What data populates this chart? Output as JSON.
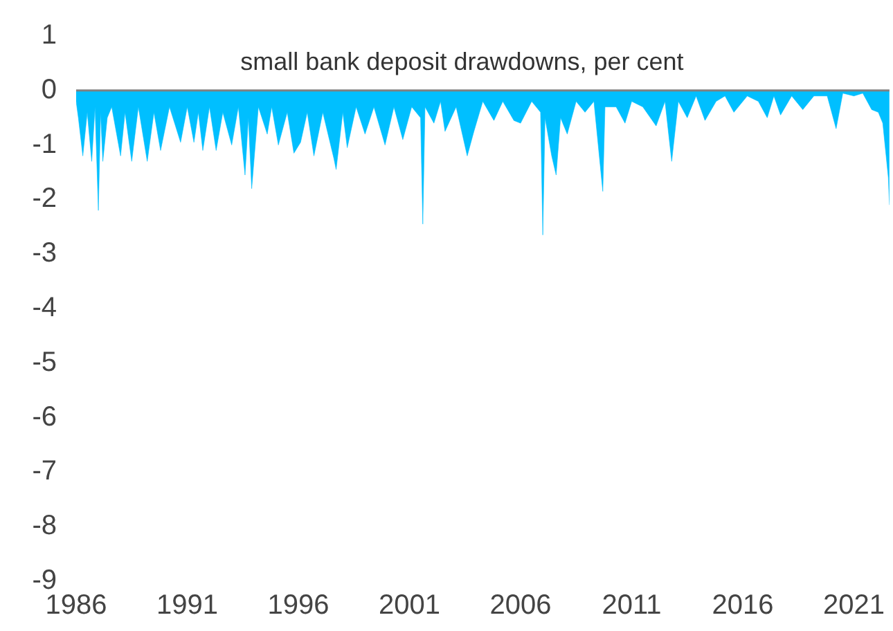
{
  "chart_data": {
    "type": "area",
    "title": "small bank deposit drawdowns, per cent",
    "x": [
      1986,
      1986.1,
      1986.3,
      1986.5,
      1986.7,
      1986.85,
      1987.0,
      1987.1,
      1987.2,
      1987.4,
      1987.6,
      1988.0,
      1988.2,
      1988.5,
      1988.8,
      1989.2,
      1989.5,
      1989.8,
      1990.2,
      1990.7,
      1991.0,
      1991.3,
      1991.5,
      1991.7,
      1992.0,
      1992.3,
      1992.6,
      1993.0,
      1993.3,
      1993.6,
      1993.75,
      1993.9,
      1994.2,
      1994.6,
      1994.8,
      1995.1,
      1995.5,
      1995.8,
      1996.1,
      1996.4,
      1996.7,
      1997.1,
      1997.6,
      1997.7,
      1998.0,
      1998.2,
      1998.6,
      1999.0,
      1999.4,
      1999.9,
      2000.3,
      2000.7,
      2001.1,
      2001.5,
      2001.6,
      2001.7,
      2002.1,
      2002.4,
      2002.6,
      2003.1,
      2003.6,
      2003.9,
      2004.3,
      2004.8,
      2005.2,
      2005.7,
      2006.0,
      2006.5,
      2006.9,
      2007.0,
      2007.1,
      2007.4,
      2007.6,
      2007.8,
      2008.1,
      2008.5,
      2008.9,
      2009.3,
      2009.7,
      2009.8,
      2010.3,
      2010.7,
      2011.0,
      2011.5,
      2012.1,
      2012.5,
      2012.8,
      2013.1,
      2013.5,
      2013.9,
      2014.3,
      2014.8,
      2015.2,
      2015.6,
      2016.2,
      2016.7,
      2017.1,
      2017.4,
      2017.7,
      2018.2,
      2018.7,
      2019.2,
      2019.8,
      2020.2,
      2020.5,
      2021.0,
      2021.4,
      2021.8,
      2022.1,
      2022.3,
      2022.45,
      2022.55,
      2022.6
    ],
    "values": [
      -0.2,
      -0.5,
      -1.2,
      -0.4,
      -1.3,
      -0.3,
      -2.2,
      -0.4,
      -1.3,
      -0.5,
      -0.3,
      -1.2,
      -0.4,
      -1.3,
      -0.3,
      -1.3,
      -0.4,
      -1.1,
      -0.3,
      -0.95,
      -0.3,
      -0.95,
      -0.4,
      -1.1,
      -0.3,
      -1.1,
      -0.4,
      -1.0,
      -0.3,
      -1.55,
      -0.5,
      -1.8,
      -0.3,
      -0.8,
      -0.3,
      -1.0,
      -0.4,
      -1.15,
      -0.95,
      -0.4,
      -1.2,
      -0.4,
      -1.25,
      -1.45,
      -0.4,
      -1.05,
      -0.3,
      -0.8,
      -0.3,
      -1.0,
      -0.3,
      -0.9,
      -0.3,
      -0.5,
      -2.45,
      -0.3,
      -0.6,
      -0.2,
      -0.75,
      -0.3,
      -1.2,
      -0.75,
      -0.2,
      -0.55,
      -0.2,
      -0.55,
      -0.6,
      -0.2,
      -0.4,
      -2.65,
      -0.5,
      -1.2,
      -1.55,
      -0.5,
      -0.8,
      -0.2,
      -0.4,
      -0.2,
      -1.85,
      -0.3,
      -0.3,
      -0.6,
      -0.2,
      -0.3,
      -0.65,
      -0.2,
      -1.3,
      -0.2,
      -0.5,
      -0.1,
      -0.55,
      -0.2,
      -0.1,
      -0.4,
      -0.1,
      -0.2,
      -0.5,
      -0.1,
      -0.45,
      -0.1,
      -0.35,
      -0.1,
      -0.1,
      -0.7,
      -0.05,
      -0.1,
      -0.05,
      -0.35,
      -0.4,
      -0.6,
      -1.2,
      -1.6,
      -2.1
    ],
    "color": "#00bfff",
    "xlim": [
      1986,
      2022.6
    ],
    "xticks": [
      1986,
      1991,
      1996,
      2001,
      2006,
      2011,
      2016,
      2021
    ],
    "ylim": [
      -9,
      1
    ],
    "yticks": [
      -9,
      -8,
      -7,
      -6,
      -5,
      -4,
      -3,
      -2,
      -1,
      0,
      1
    ],
    "ref_lines": [
      {
        "axis": "y",
        "value": 0,
        "color": "#808080"
      }
    ],
    "grid": false,
    "legend": false
  }
}
